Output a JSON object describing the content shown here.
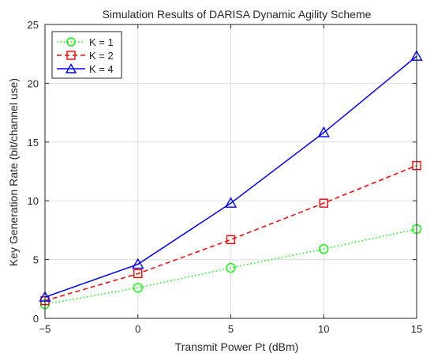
{
  "chart_data": {
    "type": "line",
    "title": "Simulation Results of DARISA Dynamic Agility Scheme",
    "xlabel": "Transmit Power Pt (dBm)",
    "ylabel": "Key Generation Rate (bit/channel use)",
    "x": [
      -5,
      0,
      5,
      10,
      15
    ],
    "xlim": [
      -5,
      15
    ],
    "ylim": [
      0,
      25
    ],
    "xticks": [
      -5,
      0,
      5,
      10,
      15
    ],
    "yticks": [
      0,
      5,
      10,
      15,
      20,
      25
    ],
    "xtick_labels": [
      "−5",
      "0",
      "5",
      "10",
      "15"
    ],
    "ytick_labels": [
      "0",
      "5",
      "10",
      "15",
      "20",
      "25"
    ],
    "grid": true,
    "legend_position": "top-left",
    "series": [
      {
        "name": "K = 1",
        "values": [
          1.2,
          2.6,
          4.3,
          5.9,
          7.6
        ],
        "color": "#00ff00",
        "line_style": "dotted",
        "marker": "circle"
      },
      {
        "name": "K = 2",
        "values": [
          1.5,
          3.8,
          6.7,
          9.8,
          13.0
        ],
        "color": "#ff0000",
        "line_style": "dashed",
        "marker": "square"
      },
      {
        "name": "K = 4",
        "values": [
          1.8,
          4.6,
          9.8,
          15.8,
          22.3
        ],
        "color": "#0000ff",
        "line_style": "solid",
        "marker": "triangle"
      }
    ]
  }
}
